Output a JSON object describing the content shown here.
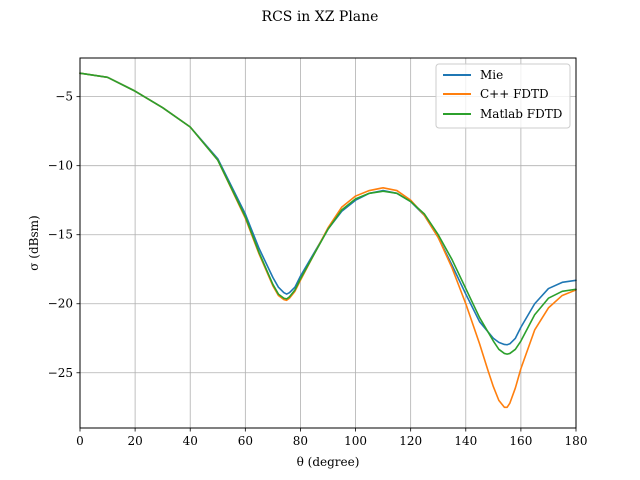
{
  "chart_data": {
    "type": "line",
    "title": "RCS in XZ Plane",
    "xlabel": "θ (degree)",
    "ylabel": "σ (dBsm)",
    "xlim": [
      0,
      180
    ],
    "ylim": [
      -29,
      -2.2
    ],
    "xticks": [
      0,
      20,
      40,
      60,
      80,
      100,
      120,
      140,
      160,
      180
    ],
    "yticks": [
      -25,
      -20,
      -15,
      -10,
      -5
    ],
    "ytick_labels": [
      "−25",
      "−20",
      "−15",
      "−10",
      "−5"
    ],
    "grid": true,
    "legend_position": "top-right",
    "series": [
      {
        "name": "Mie",
        "color": "#1f77b4",
        "x": [
          0,
          10,
          20,
          30,
          40,
          50,
          60,
          65,
          70,
          72,
          74,
          75,
          76,
          78,
          80,
          85,
          90,
          95,
          100,
          105,
          110,
          115,
          120,
          125,
          130,
          135,
          140,
          145,
          150,
          152,
          154,
          155,
          156,
          158,
          160,
          165,
          170,
          175,
          180
        ],
        "y": [
          -3.3,
          -3.6,
          -4.6,
          -5.8,
          -7.2,
          -9.5,
          -13.5,
          -16.0,
          -18.1,
          -18.8,
          -19.2,
          -19.3,
          -19.2,
          -18.8,
          -18.0,
          -16.3,
          -14.6,
          -13.3,
          -12.5,
          -12.0,
          -11.8,
          -12.0,
          -12.6,
          -13.6,
          -15.2,
          -17.2,
          -19.3,
          -21.3,
          -22.5,
          -22.8,
          -22.95,
          -22.97,
          -22.9,
          -22.5,
          -21.7,
          -20.0,
          -18.9,
          -18.45,
          -18.3
        ]
      },
      {
        "name": "C++ FDTD",
        "color": "#ff7f0e",
        "x": [
          0,
          10,
          20,
          30,
          40,
          50,
          60,
          65,
          70,
          72,
          74,
          75,
          76,
          78,
          80,
          85,
          90,
          95,
          100,
          105,
          110,
          115,
          120,
          125,
          130,
          135,
          140,
          145,
          148,
          150,
          152,
          154,
          155,
          156,
          158,
          160,
          165,
          170,
          175,
          180
        ],
        "y": [
          -3.3,
          -3.6,
          -4.6,
          -5.8,
          -7.2,
          -9.6,
          -13.8,
          -16.4,
          -18.7,
          -19.4,
          -19.7,
          -19.75,
          -19.6,
          -19.1,
          -18.3,
          -16.4,
          -14.5,
          -13.0,
          -12.2,
          -11.8,
          -11.6,
          -11.8,
          -12.5,
          -13.6,
          -15.2,
          -17.4,
          -20.0,
          -22.9,
          -24.8,
          -26.0,
          -27.0,
          -27.5,
          -27.5,
          -27.2,
          -26.1,
          -24.7,
          -21.9,
          -20.3,
          -19.4,
          -19.0
        ]
      },
      {
        "name": "Matlab FDTD",
        "color": "#2ca02c",
        "x": [
          0,
          10,
          20,
          30,
          40,
          50,
          60,
          65,
          70,
          72,
          74,
          75,
          76,
          78,
          80,
          85,
          90,
          95,
          100,
          105,
          110,
          115,
          120,
          125,
          130,
          135,
          140,
          145,
          150,
          152,
          154,
          155,
          156,
          158,
          160,
          165,
          170,
          175,
          180
        ],
        "y": [
          -3.3,
          -3.6,
          -4.6,
          -5.8,
          -7.2,
          -9.6,
          -13.7,
          -16.3,
          -18.6,
          -19.3,
          -19.6,
          -19.65,
          -19.5,
          -19.0,
          -18.2,
          -16.4,
          -14.6,
          -13.2,
          -12.4,
          -12.0,
          -11.85,
          -12.0,
          -12.6,
          -13.5,
          -15.0,
          -16.8,
          -18.9,
          -21.0,
          -22.7,
          -23.3,
          -23.6,
          -23.65,
          -23.6,
          -23.3,
          -22.7,
          -20.8,
          -19.6,
          -19.1,
          -18.95
        ]
      }
    ]
  }
}
